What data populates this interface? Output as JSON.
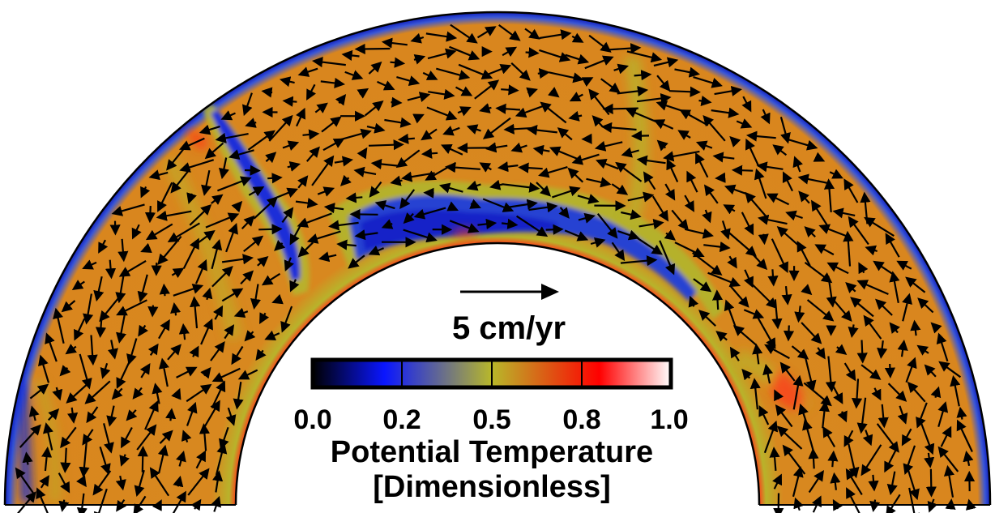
{
  "figure": {
    "kind": "mantle-convection-annulus",
    "colors": {
      "background": "#ffffff",
      "outline": "#000000",
      "field_dominant": "#d9861e",
      "cold_downwelling": "#1a2fd0",
      "transition": "#a8b42a",
      "hot_boundary": "#ff2a1a",
      "arrow": "#000000"
    },
    "velocity_scale": {
      "label": "5 cm/yr"
    },
    "colorbar": {
      "stops": [
        {
          "value": 0.0,
          "color": "#000000"
        },
        {
          "value": 0.2,
          "color": "#0a16ff"
        },
        {
          "value": 0.5,
          "color": "#b8b82a"
        },
        {
          "value": 0.8,
          "color": "#ff0000"
        },
        {
          "value": 1.0,
          "color": "#ffffff"
        }
      ],
      "ticks": [
        "0.0",
        "0.2",
        "0.5",
        "0.8",
        "1.0"
      ],
      "title_line1": "Potential Temperature",
      "title_line2": "[Dimensionless]"
    }
  }
}
